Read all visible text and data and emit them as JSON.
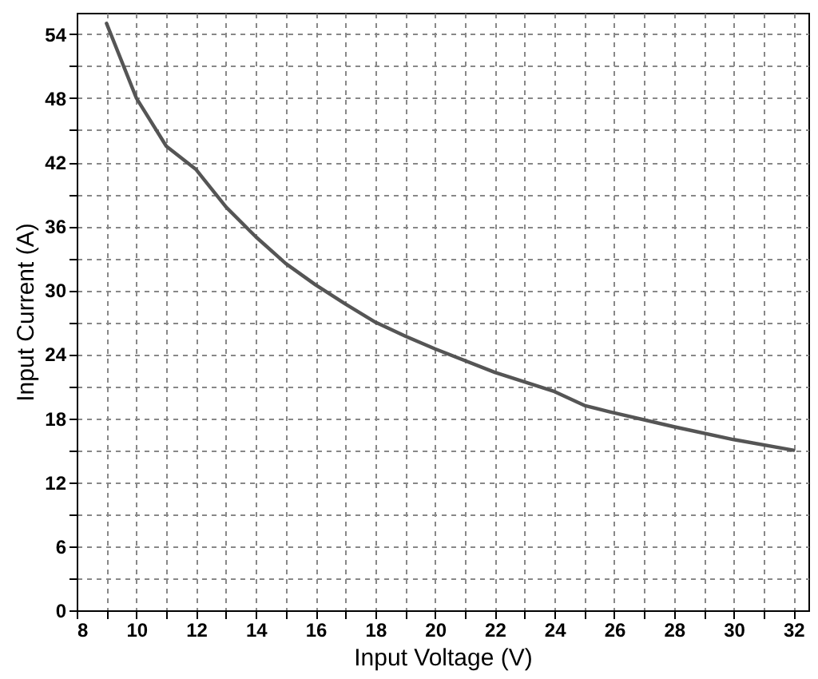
{
  "chart_data": {
    "type": "line",
    "xlabel": "Input Voltage (V)",
    "ylabel": "Input Current (A)",
    "x": [
      9,
      10,
      11,
      12,
      13,
      14,
      15,
      16,
      17,
      18,
      19,
      20,
      22,
      24,
      25,
      26,
      28,
      30,
      32
    ],
    "series": [
      {
        "color": "#555555",
        "values": [
          55,
          48,
          43.5,
          41.3,
          37.8,
          35,
          32.5,
          30.5,
          28.7,
          27,
          25.7,
          24.5,
          22.3,
          20.5,
          19.2,
          18.5,
          17.2,
          16,
          15
        ]
      }
    ],
    "xlim": [
      8,
      32.5
    ],
    "ylim": [
      0,
      56
    ],
    "xticks": [
      8,
      {
        "value": 9,
        "label": null
      },
      10,
      {
        "value": 11,
        "label": null
      },
      12,
      {
        "value": 13,
        "label": null
      },
      14,
      {
        "value": 15,
        "label": null
      },
      16,
      {
        "value": 17,
        "label": null
      },
      18,
      {
        "value": 19,
        "label": null
      },
      20,
      {
        "value": 21,
        "label": null
      },
      22,
      {
        "value": 23,
        "label": null
      },
      24,
      {
        "value": 25,
        "label": null
      },
      26,
      {
        "value": 27,
        "label": null
      },
      28,
      {
        "value": 29,
        "label": null
      },
      30,
      {
        "value": 31,
        "label": null
      },
      32
    ],
    "yticks": [
      0,
      {
        "value": 3,
        "label": null
      },
      6,
      {
        "value": 9,
        "label": null
      },
      12,
      {
        "value": 15,
        "label": null
      },
      18,
      {
        "value": 21,
        "label": null
      },
      24,
      {
        "value": 27,
        "label": null
      },
      30,
      {
        "value": 33,
        "label": null
      },
      36,
      {
        "value": 39,
        "label": null
      },
      42,
      {
        "value": 45,
        "label": null
      },
      48,
      {
        "value": 51,
        "label": null
      },
      54
    ],
    "grid": true,
    "line_style": "solid",
    "marker": "none"
  }
}
